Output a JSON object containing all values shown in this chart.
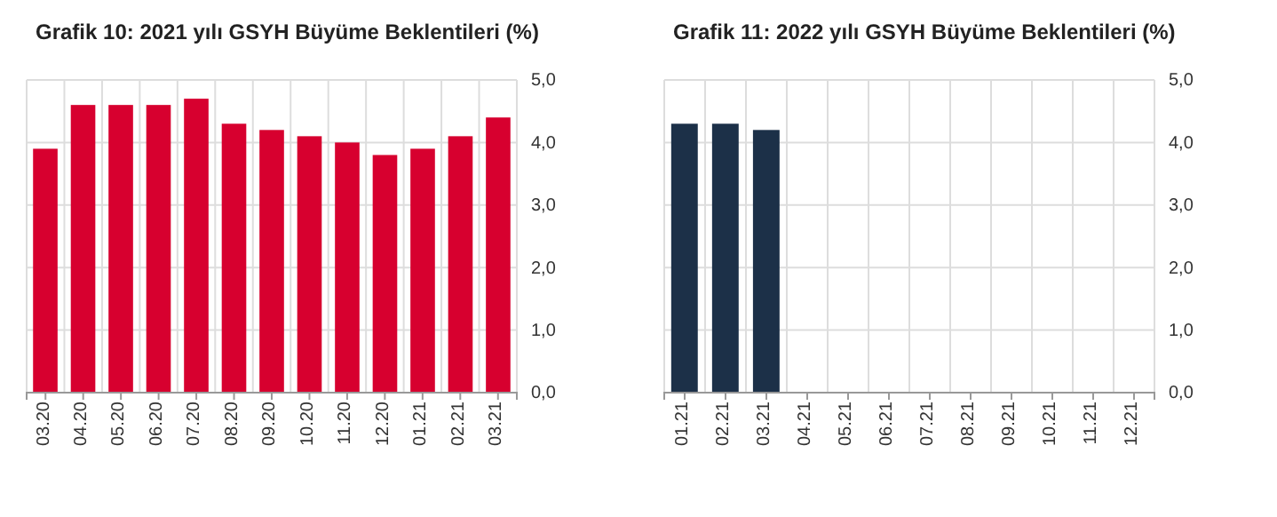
{
  "chart_data": [
    {
      "type": "bar",
      "title": "Grafik 10: 2021 yılı GSYH Büyüme Beklentileri (%)",
      "categories": [
        "03.20",
        "04.20",
        "05.20",
        "06.20",
        "07.20",
        "08.20",
        "09.20",
        "10.20",
        "11.20",
        "12.20",
        "01.21",
        "02.21",
        "03.21"
      ],
      "series": [
        {
          "color": "#d7002f",
          "values": [
            3.9,
            4.6,
            4.6,
            4.6,
            4.7,
            4.3,
            4.2,
            4.1,
            4.0,
            3.8,
            3.9,
            4.1,
            4.4
          ]
        }
      ],
      "ylim": [
        0,
        5
      ],
      "yticks": [
        {
          "value": 0,
          "label": "0,0"
        },
        {
          "value": 1,
          "label": "1,0"
        },
        {
          "value": 2,
          "label": "2,0"
        },
        {
          "value": 3,
          "label": "3,0"
        },
        {
          "value": 4,
          "label": "4,0"
        },
        {
          "value": 5,
          "label": "5,0"
        }
      ],
      "grid": true
    },
    {
      "type": "bar",
      "title": "Grafik 11: 2022 yılı GSYH Büyüme Beklentileri (%)",
      "categories": [
        "01.21",
        "02.21",
        "03.21",
        "04.21",
        "05.21",
        "06.21",
        "07.21",
        "08.21",
        "09.21",
        "10.21",
        "11.21",
        "12.21"
      ],
      "series": [
        {
          "color": "#1c3048",
          "values": [
            4.3,
            4.3,
            4.2,
            null,
            null,
            null,
            null,
            null,
            null,
            null,
            null,
            null
          ]
        }
      ],
      "ylim": [
        0,
        5
      ],
      "yticks": [
        {
          "value": 0,
          "label": "0,0"
        },
        {
          "value": 1,
          "label": "1,0"
        },
        {
          "value": 2,
          "label": "2,0"
        },
        {
          "value": 3,
          "label": "3,0"
        },
        {
          "value": 4,
          "label": "4,0"
        },
        {
          "value": 5,
          "label": "5,0"
        }
      ],
      "grid": true
    }
  ]
}
